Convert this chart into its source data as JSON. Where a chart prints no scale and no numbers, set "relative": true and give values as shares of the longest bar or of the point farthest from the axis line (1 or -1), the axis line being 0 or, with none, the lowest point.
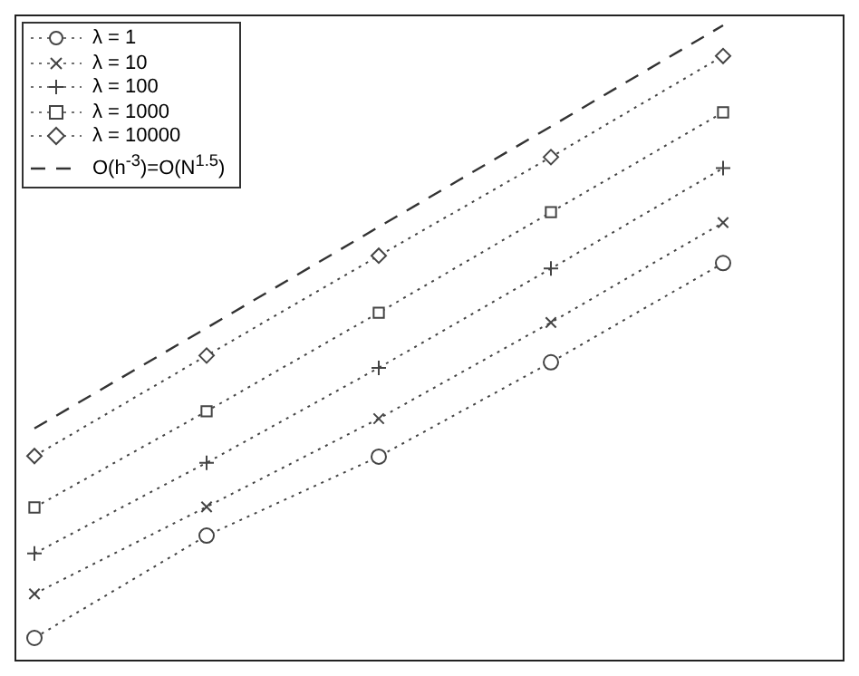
{
  "chart_data": {
    "type": "line",
    "relative": true,
    "categories": [
      null,
      null,
      null,
      null,
      null
    ],
    "legend": "top left",
    "series": [
      {
        "name": "λ = 1",
        "color": "#444444",
        "marker": "circle",
        "line_style": "dotted",
        "values": [
          0,
          0.167,
          0.296,
          0.45,
          0.612
        ]
      },
      {
        "name": "λ = 10",
        "color": "#444444",
        "marker": "x",
        "line_style": "dotted",
        "values": [
          0.072,
          0.214,
          0.358,
          0.515,
          0.678
        ]
      },
      {
        "name": "λ = 100",
        "color": "#444444",
        "marker": "cross",
        "line_style": "dotted",
        "values": [
          0.138,
          0.286,
          0.441,
          0.603,
          0.767
        ]
      },
      {
        "name": "λ = 1000",
        "color": "#444444",
        "marker": "square",
        "line_style": "dotted",
        "values": [
          0.213,
          0.37,
          0.531,
          0.695,
          0.858
        ]
      },
      {
        "name": "λ = 10000",
        "color": "#444444",
        "marker": "diamond",
        "line_style": "dotted",
        "values": [
          0.297,
          0.461,
          0.624,
          0.785,
          0.95
        ]
      },
      {
        "name": "O(h$^{-3}$)=O(N$^{1.5}$)",
        "color": "#333333",
        "marker": "none",
        "line_style": "dashed",
        "values": [
          0.342,
          0.506,
          0.671,
          0.835,
          1
        ]
      }
    ]
  }
}
